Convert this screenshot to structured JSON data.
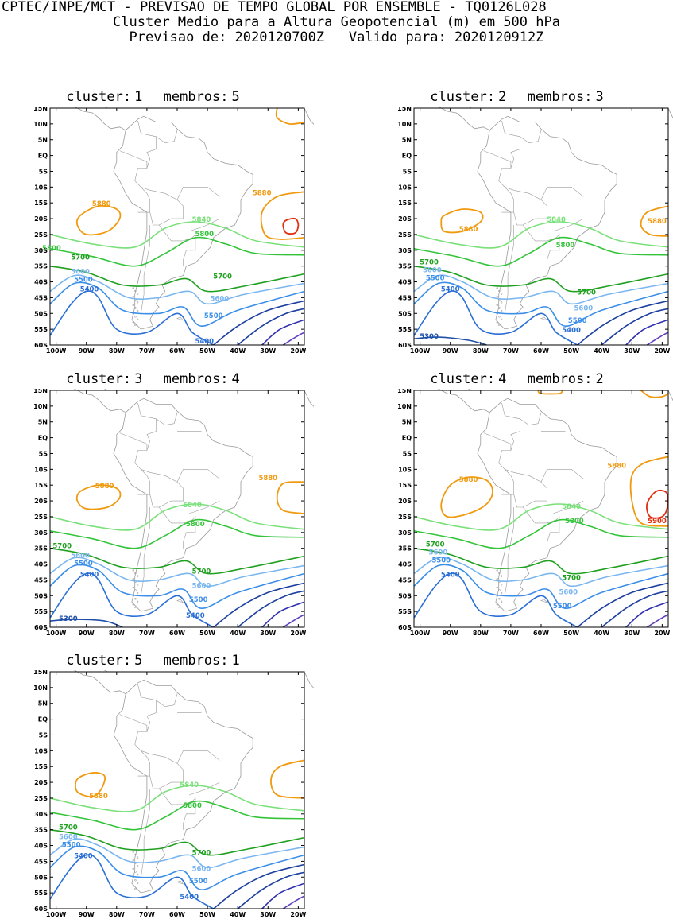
{
  "header": {
    "line1": "CPTEC/INPE/MCT - PREVISAO DE TEMPO GLOBAL POR ENSEMBLE - TQ0126L028",
    "line2": "Cluster Medio para a Altura Geopotencial (m) em 500 hPa",
    "line3_left": "Previsao de: 2020120700Z",
    "line3_right": "Valido para: 2020120912Z"
  },
  "colors": {
    "5300": "#1f4fa8",
    "5400": "#2a6fd6",
    "5500": "#3a8ee8",
    "5600": "#7ab6f0",
    "5700": "#1fa01f",
    "5800": "#33c43a",
    "5840": "#7ae07a",
    "5880": "#f09a10",
    "5900": "#e03010",
    "deep1": "#1c3fa0",
    "deep2": "#3030b0",
    "deep3": "#6040c0",
    "land": "#9a9a9a"
  },
  "axes": {
    "lat_ticks": [
      "15N",
      "10N",
      "5N",
      "EQ",
      "5S",
      "10S",
      "15S",
      "20S",
      "25S",
      "30S",
      "35S",
      "40S",
      "45S",
      "50S",
      "55S",
      "60S"
    ],
    "lon_ticks": [
      "100W",
      "90W",
      "80W",
      "70W",
      "60W",
      "50W",
      "40W",
      "30W",
      "20W"
    ]
  },
  "clusters": [
    {
      "name": "cluster:",
      "number": "1",
      "members_label": "membros:",
      "members": "5",
      "labels": [
        "5880",
        "5880",
        "5840",
        "5800",
        "5700",
        "5600",
        "5500",
        "5400",
        "5700",
        "5600",
        "5500",
        "5400",
        "5800"
      ]
    },
    {
      "name": "cluster:",
      "number": "2",
      "members_label": "membros:",
      "members": "3",
      "labels": [
        "5880",
        "5840",
        "5800",
        "5700",
        "5600",
        "5500",
        "5400",
        "5300",
        "5700",
        "5600",
        "5500",
        "5400",
        "5880"
      ]
    },
    {
      "name": "cluster:",
      "number": "3",
      "members_label": "membros:",
      "members": "4",
      "labels": [
        "5880",
        "5880",
        "5840",
        "5800",
        "5700",
        "5600",
        "5500",
        "5400",
        "5700",
        "5600",
        "5500",
        "5400",
        "5300"
      ]
    },
    {
      "name": "cluster:",
      "number": "4",
      "members_label": "membros:",
      "members": "2",
      "labels": [
        "5880",
        "5880",
        "5840",
        "5800",
        "5700",
        "5600",
        "5500",
        "5400",
        "5700",
        "5600",
        "5500",
        "5900"
      ]
    },
    {
      "name": "cluster:",
      "number": "5",
      "members_label": "membros:",
      "members": "1",
      "labels": [
        "5880",
        "5840",
        "5800",
        "5700",
        "5600",
        "5500",
        "5400",
        "5700",
        "5600",
        "5500",
        "5400"
      ]
    }
  ]
}
